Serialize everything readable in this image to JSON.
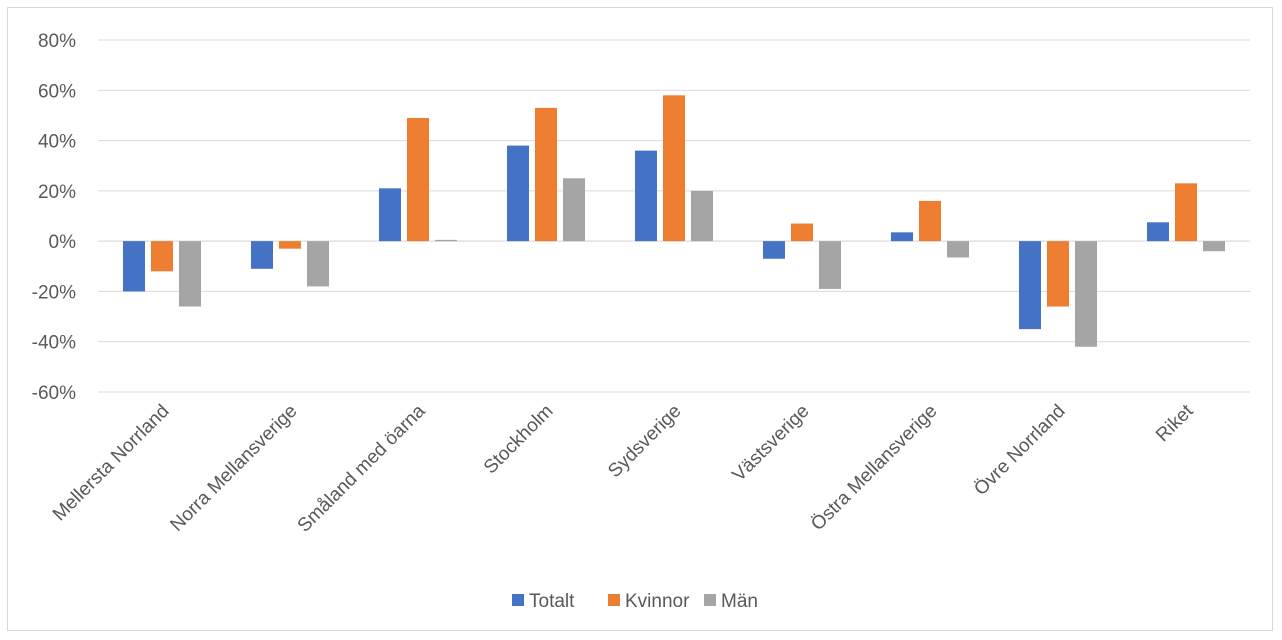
{
  "chart_data": {
    "type": "bar",
    "categories": [
      "Mellersta Norrland",
      "Norra Mellansverige",
      "Småland med öarna",
      "Stockholm",
      "Sydsverige",
      "Västsverige",
      "Östra Mellansverige",
      "Övre Norrland",
      "Riket"
    ],
    "series": [
      {
        "name": "Totalt",
        "color": "#4472c4",
        "values": [
          -20,
          -11,
          21,
          38,
          36,
          -7,
          3.5,
          -35,
          7.5
        ]
      },
      {
        "name": "Kvinnor",
        "color": "#ed7d31",
        "values": [
          -12,
          -3,
          49,
          53,
          58,
          7,
          16,
          -26,
          23
        ]
      },
      {
        "name": "Män",
        "color": "#a5a5a5",
        "values": [
          -26,
          -18,
          0.5,
          25,
          20,
          -19,
          -6.5,
          -42,
          -4
        ]
      }
    ],
    "ylim": [
      -60,
      80
    ],
    "yticks": [
      "80%",
      "60%",
      "40%",
      "20%",
      "0%",
      "-20%",
      "-40%",
      "-60%"
    ],
    "ytick_values": [
      80,
      60,
      40,
      20,
      0,
      -20,
      -40,
      -60
    ],
    "grid": true,
    "legend_position": "bottom",
    "title": "",
    "xlabel": "",
    "ylabel": ""
  }
}
